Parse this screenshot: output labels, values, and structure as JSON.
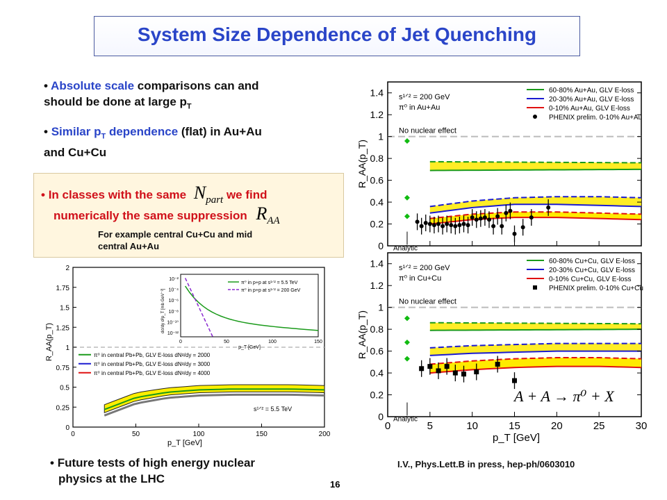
{
  "slide": {
    "title": "System Size Dependence of Jet Quenching",
    "bullets": [
      {
        "highlight": "Absolute scale",
        "rest": " comparisons can and",
        "line2": "should be done at large p",
        "sub": "T"
      },
      {
        "highlight": "Similar p",
        "sub": "T",
        "highlight2": " dependence",
        "rest": " (flat) in Au+Au",
        "line2": "and Cu+Cu"
      }
    ],
    "box": {
      "line1a": "In classes with the same",
      "npart": "N",
      "npart_sub": "part",
      "line1b": "we find",
      "line2": "numerically the same suppression",
      "raa": "R",
      "raa_sub": "AA",
      "note1": "For example central Cu+Cu and mid",
      "note2": "central Au+Au"
    },
    "future": {
      "line1": "Future tests of high energy nuclear",
      "line2": "physics  at the LHC"
    },
    "reference": "I.V., Phys.Lett.B in press, hep-ph/0603010",
    "page_number": "16",
    "reaction": {
      "text": "A + A → π⁰ + X"
    }
  },
  "chart_data": [
    {
      "type": "line",
      "panel": "Au+Au",
      "xlabel": "p_T [GeV]",
      "ylabel": "R_AA(p_T)",
      "xlim": [
        0,
        30
      ],
      "ylim": [
        0,
        1.5
      ],
      "xticks": [
        "0",
        "5",
        "10",
        "15",
        "20",
        "25",
        "30"
      ],
      "yticks": [
        "0",
        "0.2",
        "0.4",
        "0.6",
        "0.8",
        "1",
        "1.2",
        "1.4"
      ],
      "annotations": {
        "sqrt_s": "s¹ᐟ² = 200 GeV",
        "system": "π⁰ in Au+Au",
        "no_effect": "No nuclear effect",
        "analytic": "Analytic"
      },
      "legend": [
        "60-80% Au+Au, GLV E-loss",
        "20-30% Au+Au, GLV E-loss",
        "0-10% Au+Au, GLV E-loss",
        "PHENIX prelim. 0-10% Au+Au"
      ],
      "bands": [
        {
          "name": "60-80%",
          "color": "#1a9a1a",
          "x": [
            5,
            30
          ],
          "lower": [
            0.69,
            0.7
          ],
          "upper": [
            0.77,
            0.76
          ]
        },
        {
          "name": "20-30%",
          "color": "#1a1ad0",
          "x": [
            5,
            10,
            15,
            20,
            25,
            30
          ],
          "lower": [
            0.3,
            0.35,
            0.38,
            0.38,
            0.37,
            0.36
          ],
          "upper": [
            0.36,
            0.41,
            0.44,
            0.45,
            0.45,
            0.44
          ]
        },
        {
          "name": "0-10%",
          "color": "#e01010",
          "x": [
            5,
            10,
            15,
            20,
            25,
            30
          ],
          "lower": [
            0.2,
            0.24,
            0.26,
            0.26,
            0.25,
            0.24
          ],
          "upper": [
            0.25,
            0.29,
            0.31,
            0.31,
            0.3,
            0.29
          ]
        }
      ],
      "analytic_points": [
        0.96,
        0.44,
        0.27
      ],
      "points": [
        {
          "x": 3.5,
          "y": 0.22
        },
        {
          "x": 4.0,
          "y": 0.18
        },
        {
          "x": 4.5,
          "y": 0.21
        },
        {
          "x": 5.0,
          "y": 0.2
        },
        {
          "x": 5.5,
          "y": 0.19
        },
        {
          "x": 6.0,
          "y": 0.2
        },
        {
          "x": 6.5,
          "y": 0.18
        },
        {
          "x": 7.0,
          "y": 0.2
        },
        {
          "x": 7.5,
          "y": 0.19
        },
        {
          "x": 8.0,
          "y": 0.18
        },
        {
          "x": 8.5,
          "y": 0.19
        },
        {
          "x": 9.0,
          "y": 0.2
        },
        {
          "x": 9.5,
          "y": 0.19
        },
        {
          "x": 10.0,
          "y": 0.26
        },
        {
          "x": 10.5,
          "y": 0.24
        },
        {
          "x": 11.0,
          "y": 0.25
        },
        {
          "x": 11.5,
          "y": 0.26
        },
        {
          "x": 12.0,
          "y": 0.24
        },
        {
          "x": 12.5,
          "y": 0.18
        },
        {
          "x": 13.0,
          "y": 0.27
        },
        {
          "x": 13.5,
          "y": 0.18
        },
        {
          "x": 14.0,
          "y": 0.3
        },
        {
          "x": 14.5,
          "y": 0.32
        },
        {
          "x": 15.0,
          "y": 0.11
        },
        {
          "x": 16.0,
          "y": 0.17
        },
        {
          "x": 17.0,
          "y": 0.26
        },
        {
          "x": 19.0,
          "y": 0.35
        }
      ]
    },
    {
      "type": "line",
      "panel": "Cu+Cu",
      "xlabel": "p_T [GeV]",
      "ylabel": "R_AA(p_T)",
      "xlim": [
        0,
        30
      ],
      "ylim": [
        0,
        1.5
      ],
      "xticks": [
        "0",
        "5",
        "10",
        "15",
        "20",
        "25",
        "30"
      ],
      "yticks": [
        "0",
        "0.2",
        "0.4",
        "0.6",
        "0.8",
        "1",
        "1.2",
        "1.4"
      ],
      "annotations": {
        "sqrt_s": "s¹ᐟ² = 200 GeV",
        "system": "π⁰ in Cu+Cu",
        "no_effect": "No nuclear effect",
        "analytic": "Analytic"
      },
      "legend": [
        "60-80% Cu+Cu, GLV E-loss",
        "20-30% Cu+Cu, GLV E-loss",
        "0-10% Cu+Cu, GLV E-loss",
        "PHENIX prelim. 0-10% Cu+Cu"
      ],
      "bands": [
        {
          "name": "60-80%",
          "color": "#1a9a1a",
          "x": [
            5,
            30
          ],
          "lower": [
            0.79,
            0.8
          ],
          "upper": [
            0.86,
            0.85
          ]
        },
        {
          "name": "20-30%",
          "color": "#1a1ad0",
          "x": [
            5,
            10,
            15,
            20,
            25,
            30
          ],
          "lower": [
            0.56,
            0.58,
            0.59,
            0.6,
            0.6,
            0.6
          ],
          "upper": [
            0.63,
            0.65,
            0.66,
            0.67,
            0.67,
            0.67
          ]
        },
        {
          "name": "0-10%",
          "color": "#e01010",
          "x": [
            5,
            10,
            15,
            20,
            25,
            30
          ],
          "lower": [
            0.4,
            0.43,
            0.45,
            0.46,
            0.46,
            0.45
          ],
          "upper": [
            0.48,
            0.51,
            0.53,
            0.54,
            0.54,
            0.53
          ]
        }
      ],
      "analytic_points": [
        0.9,
        0.68,
        0.53
      ],
      "points": [
        {
          "x": 4.0,
          "y": 0.44
        },
        {
          "x": 5.0,
          "y": 0.46
        },
        {
          "x": 6.0,
          "y": 0.42
        },
        {
          "x": 7.0,
          "y": 0.46
        },
        {
          "x": 8.0,
          "y": 0.4
        },
        {
          "x": 9.0,
          "y": 0.39
        },
        {
          "x": 10.5,
          "y": 0.41
        },
        {
          "x": 13.0,
          "y": 0.48
        },
        {
          "x": 15.0,
          "y": 0.33
        }
      ]
    },
    {
      "type": "area",
      "panel": "LHC Pb+Pb",
      "xlabel": "p_T [GeV]",
      "ylabel": "R_AA(p_T)",
      "xlim": [
        0,
        200
      ],
      "ylim": [
        0,
        2
      ],
      "xticks": [
        "0",
        "50",
        "100",
        "150",
        "200"
      ],
      "yticks": [
        "0",
        "0.25",
        "0.5",
        "0.75",
        "1",
        "1.25",
        "1.5",
        "1.75",
        "2"
      ],
      "annotations": {
        "sqrt_s": "s¹ᐟ² = 5.5 TeV"
      },
      "legend": [
        "π⁰ in central Pb+Pb, GLV E-loss dNᵍ/dy = 2000",
        "π⁰ in central Pb+Pb, GLV E-loss dNᵍ/dy = 3000",
        "π⁰ in central Pb+Pb, GLV E-loss dNᵍ/dy = 4000"
      ],
      "x": [
        25,
        50,
        75,
        100,
        125,
        150,
        175,
        200
      ],
      "upper": [
        0.28,
        0.43,
        0.49,
        0.52,
        0.53,
        0.53,
        0.53,
        0.52
      ],
      "lower": [
        0.18,
        0.33,
        0.4,
        0.43,
        0.44,
        0.44,
        0.44,
        0.43
      ],
      "inset": {
        "xlabel": "p_T [GeV]",
        "ylabel": "dσ/dy d²p_T [mb GeV⁻²]",
        "xticks": [
          "0",
          "50",
          "100",
          "150"
        ],
        "yticks": [
          "10⁻¹²",
          "10⁻¹⁰",
          "10⁻⁸",
          "10⁻⁶",
          "10⁻⁴",
          "10⁻²"
        ],
        "legend": [
          "π⁰ in p+p at s¹ᐟ² = 5.5 TeV",
          "π⁰ in p+p at s¹ᐟ² = 200 GeV"
        ]
      }
    }
  ]
}
